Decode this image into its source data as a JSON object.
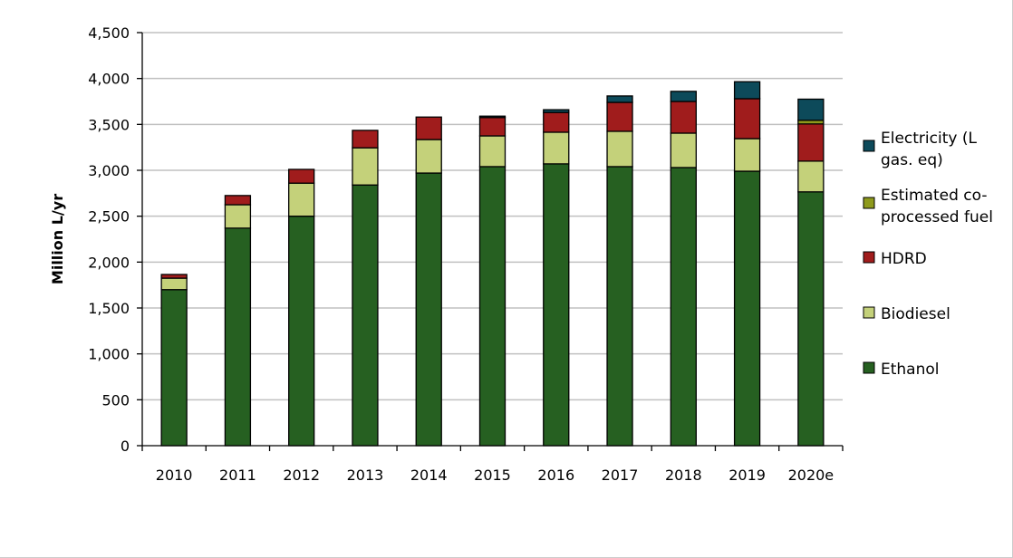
{
  "chart_data": {
    "type": "bar",
    "stacked": true,
    "title": "",
    "xlabel": "",
    "ylabel": "Million L/yr",
    "ylim": [
      0,
      4500
    ],
    "yticks": [
      0,
      500,
      1000,
      1500,
      2000,
      2500,
      3000,
      3500,
      4000,
      4500
    ],
    "ytick_labels": [
      "0",
      "500",
      "1,000",
      "1,500",
      "2,000",
      "2,500",
      "3,000",
      "3,500",
      "4,000",
      "4,500"
    ],
    "grid": "horizontal",
    "legend_placement": "right",
    "categories": [
      "2010",
      "2011",
      "2012",
      "2013",
      "2014",
      "2015",
      "2016",
      "2017",
      "2018",
      "2019",
      "2020e"
    ],
    "series": [
      {
        "name": "Ethanol",
        "color": "#266021",
        "values": [
          1700,
          2370,
          2500,
          2840,
          2970,
          3040,
          3070,
          3040,
          3030,
          2990,
          2765
        ]
      },
      {
        "name": "Biodiesel",
        "color": "#c4d17a",
        "values": [
          125,
          255,
          360,
          405,
          365,
          335,
          345,
          385,
          375,
          355,
          335
        ]
      },
      {
        "name": "HDRD",
        "color": "#a01c1c",
        "values": [
          40,
          100,
          150,
          190,
          245,
          200,
          215,
          315,
          345,
          435,
          405
        ]
      },
      {
        "name": "Estimated co-processed fuel",
        "color": "#8e9a1c",
        "values": [
          0,
          0,
          0,
          0,
          0,
          0,
          0,
          0,
          0,
          0,
          40
        ]
      },
      {
        "name": "Electricity (L gas. eq)",
        "color": "#0d4a5a",
        "values": [
          0,
          0,
          0,
          0,
          0,
          15,
          30,
          70,
          110,
          185,
          230
        ]
      }
    ],
    "legend_lines": [
      [
        "Electricity (L",
        "gas. eq)"
      ],
      [
        "Estimated co-",
        "processed fuel"
      ],
      [
        "HDRD"
      ],
      [
        "Biodiesel"
      ],
      [
        "Ethanol"
      ]
    ]
  }
}
